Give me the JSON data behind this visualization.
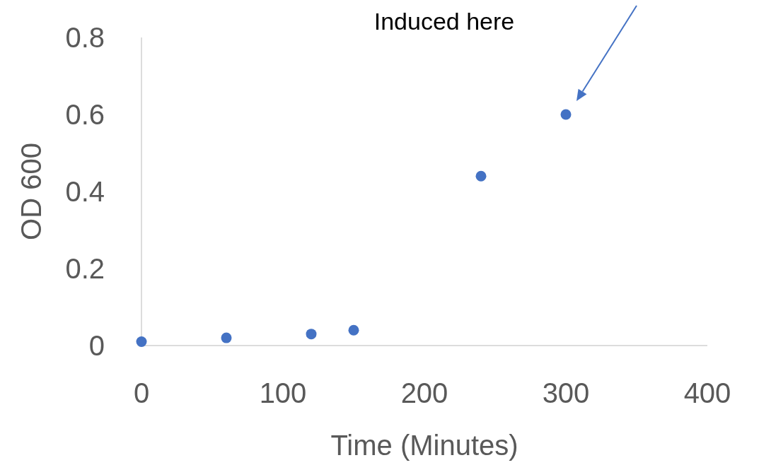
{
  "chart_data": {
    "type": "scatter",
    "xlabel": "Time (Minutes)",
    "ylabel": "OD 600",
    "x": [
      0,
      60,
      120,
      150,
      240,
      300
    ],
    "values": [
      0.01,
      0.02,
      0.03,
      0.04,
      0.44,
      0.6
    ],
    "color": "#4472c4",
    "marker": "circle",
    "xlim": [
      0,
      400
    ],
    "xticks": [
      0,
      100,
      200,
      300,
      400
    ],
    "ylim": [
      0,
      0.8
    ],
    "yticks": [
      0,
      0.2,
      0.4,
      0.6,
      0.8
    ],
    "grid": false,
    "annotations": [
      "Induced here"
    ]
  }
}
